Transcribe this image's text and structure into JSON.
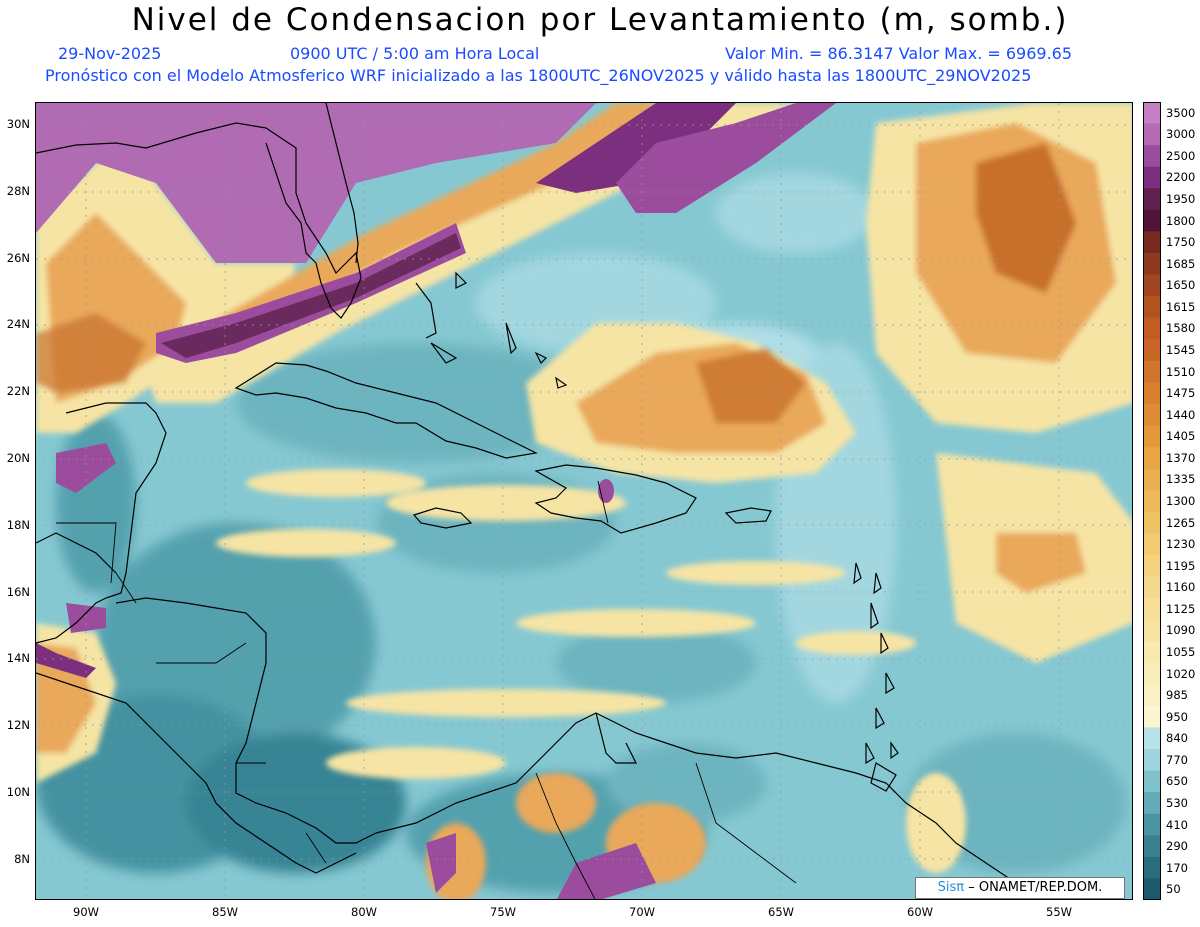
{
  "title": "Nivel de Condensacion por Levantamiento (m, somb.)",
  "date": "29-Nov-2025",
  "time": "0900 UTC / 5:00 am Hora Local",
  "valores": "Valor Min. = 86.3147  Valor Max. = 6969.65",
  "forecast": "Pronóstico con el Modelo Atmosferico WRF inicializado a las 1800UTC_26NOV2025 y válido hasta las  1800UTC_29NOV2025",
  "credit": {
    "sis": "Sisπ",
    "org": "– ONAMET/REP.DOM."
  },
  "lat_labels": [
    "30N",
    "28N",
    "26N",
    "24N",
    "22N",
    "20N",
    "18N",
    "16N",
    "14N",
    "12N",
    "10N",
    "8N"
  ],
  "lon_labels": [
    "90W",
    "85W",
    "80W",
    "75W",
    "70W",
    "65W",
    "60W",
    "55W"
  ],
  "colorbar": {
    "labels": [
      "3500",
      "3000",
      "2500",
      "2200",
      "1950",
      "1800",
      "1750",
      "1685",
      "1650",
      "1615",
      "1580",
      "1545",
      "1510",
      "1475",
      "1440",
      "1405",
      "1370",
      "1335",
      "1300",
      "1265",
      "1230",
      "1195",
      "1160",
      "1125",
      "1090",
      "1055",
      "1020",
      "985",
      "950",
      "840",
      "770",
      "650",
      "530",
      "410",
      "290",
      "170",
      "50"
    ],
    "colors": [
      "#c77fc6",
      "#b56ab6",
      "#9c4c9c",
      "#7c2f7e",
      "#62204f",
      "#521436",
      "#7a2b20",
      "#8f3a1e",
      "#a2461f",
      "#b2521f",
      "#bf5d22",
      "#c96826",
      "#d2742a",
      "#d9802e",
      "#df8c34",
      "#e4983c",
      "#e8a445",
      "#ebaf50",
      "#eeb95b",
      "#f0c266",
      "#f2ca72",
      "#f4d27e",
      "#f5d98a",
      "#f6df96",
      "#f7e4a2",
      "#f8e9ad",
      "#f9eeb9",
      "#faf2c4",
      "#fbf6cf",
      "#b9e3ea",
      "#9ed5de",
      "#7fc2cc",
      "#62abb7",
      "#4b95a2",
      "#3a818f",
      "#2a6d7c",
      "#1a5a6a"
    ]
  },
  "map_colors": {
    "ocean_base": "#86c8d2",
    "light": "#b4e0e8",
    "mid": "#6ab2be",
    "dark": "#3c8d9c",
    "yellow": "#f6e4a4",
    "orange": "#e9a85a",
    "dark_orange": "#c8702c",
    "purple": "#b06bb3",
    "dark_purple": "#6a2a5e"
  }
}
